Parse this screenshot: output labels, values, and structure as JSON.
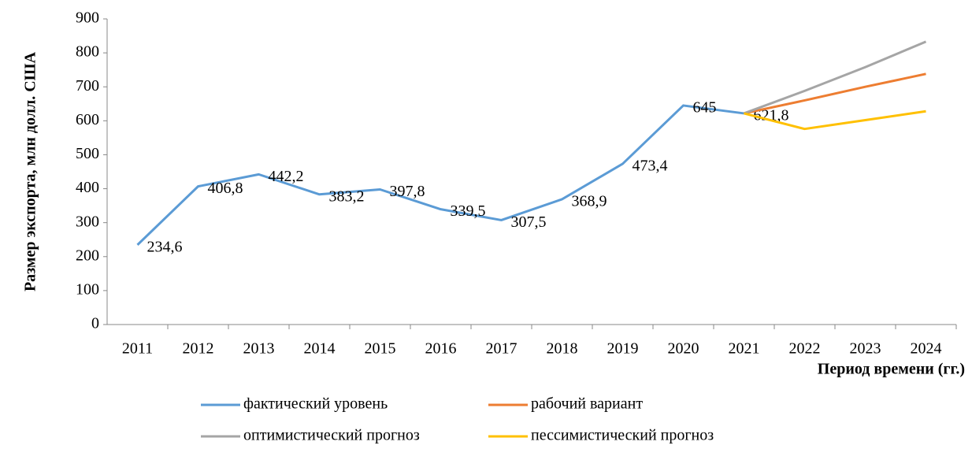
{
  "chart_data": {
    "type": "line",
    "ylabel": "Размер экспорта, млн долл. США",
    "xlabel": "Период времени (гг.)",
    "categories": [
      "2011",
      "2012",
      "2013",
      "2014",
      "2015",
      "2016",
      "2017",
      "2018",
      "2019",
      "2020",
      "2021",
      "2022",
      "2023",
      "2024"
    ],
    "series": [
      {
        "name": "фактический уровень",
        "color": "#5b9bd5",
        "values": [
          234.6,
          406.8,
          442.2,
          383.2,
          397.8,
          339.5,
          307.5,
          368.9,
          473.4,
          645,
          621.8,
          null,
          null,
          null
        ],
        "value_labels": [
          "234,6",
          "406,8",
          "442,2",
          "383,2",
          "397,8",
          "339,5",
          "307,5",
          "368,9",
          "473,4",
          "645",
          "621,8",
          null,
          null,
          null
        ]
      },
      {
        "name": "рабочий вариант",
        "color": "#ed7d31",
        "values": [
          null,
          null,
          null,
          null,
          null,
          null,
          null,
          null,
          null,
          null,
          621.8,
          660,
          700,
          738
        ]
      },
      {
        "name": "оптимистический прогноз",
        "color": "#a5a5a5",
        "values": [
          null,
          null,
          null,
          null,
          null,
          null,
          null,
          null,
          null,
          null,
          621.8,
          688,
          758,
          833
        ]
      },
      {
        "name": "пессимистический прогноз",
        "color": "#ffc000",
        "values": [
          null,
          null,
          null,
          null,
          null,
          null,
          null,
          null,
          null,
          null,
          621.8,
          576,
          602,
          628
        ]
      }
    ],
    "ylim": [
      0,
      900
    ],
    "yticks": [
      0,
      100,
      200,
      300,
      400,
      500,
      600,
      700,
      800,
      900
    ]
  }
}
